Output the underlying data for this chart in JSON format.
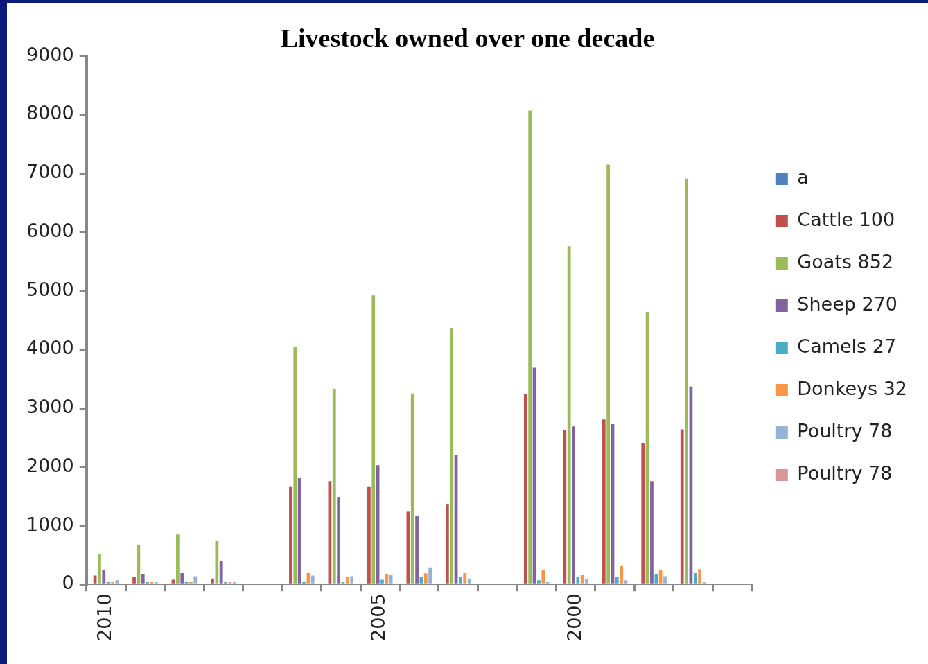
{
  "chart_data": {
    "type": "bar",
    "title": "Livestock owned over one decade",
    "categories": [
      "2010",
      null,
      null,
      null,
      null,
      null,
      null,
      "2005",
      null,
      null,
      null,
      null,
      "2000",
      null,
      null,
      null,
      null
    ],
    "series": [
      {
        "name": "a",
        "color": "#4f81bd",
        "values": [
          0,
          0,
          0,
          0,
          null,
          0,
          0,
          0,
          0,
          0,
          null,
          0,
          0,
          0,
          0,
          0,
          null
        ]
      },
      {
        "name": "Cattle 100",
        "color": "#c0504d",
        "values": [
          150,
          120,
          80,
          100,
          null,
          1670,
          1760,
          1670,
          1250,
          1370,
          null,
          3240,
          2630,
          2810,
          2410,
          2640,
          null
        ]
      },
      {
        "name": "Goats 852",
        "color": "#9bbb59",
        "values": [
          510,
          670,
          850,
          740,
          null,
          4050,
          3330,
          4920,
          3250,
          4370,
          null,
          8070,
          5760,
          7150,
          4640,
          6910,
          null
        ]
      },
      {
        "name": "Sheep 270",
        "color": "#8064a2",
        "values": [
          250,
          180,
          200,
          400,
          null,
          1810,
          1490,
          2030,
          1160,
          2200,
          null,
          3690,
          2690,
          2730,
          1760,
          3370,
          null
        ]
      },
      {
        "name": "Camels 27",
        "color": "#4bacc6",
        "values": [
          40,
          50,
          40,
          40,
          null,
          50,
          40,
          80,
          130,
          120,
          null,
          70,
          130,
          130,
          180,
          200,
          null
        ]
      },
      {
        "name": "Donkeys 32",
        "color": "#f79646",
        "values": [
          40,
          50,
          40,
          50,
          null,
          200,
          120,
          180,
          190,
          200,
          null,
          250,
          160,
          320,
          250,
          260,
          null
        ]
      },
      {
        "name": "Poultry 78",
        "color": "#95b3d7",
        "values": [
          70,
          40,
          140,
          40,
          null,
          150,
          140,
          170,
          290,
          100,
          null,
          40,
          90,
          70,
          140,
          50,
          null
        ]
      },
      {
        "name": "Poultry 78",
        "color": "#d99694",
        "values": [
          0,
          0,
          0,
          0,
          null,
          0,
          0,
          0,
          0,
          0,
          null,
          0,
          0,
          0,
          0,
          0,
          null
        ]
      }
    ],
    "ylim": [
      0,
      9000
    ],
    "yticks": [
      0,
      1000,
      2000,
      3000,
      4000,
      5000,
      6000,
      7000,
      8000,
      9000
    ],
    "grid": false,
    "legend": "right"
  }
}
